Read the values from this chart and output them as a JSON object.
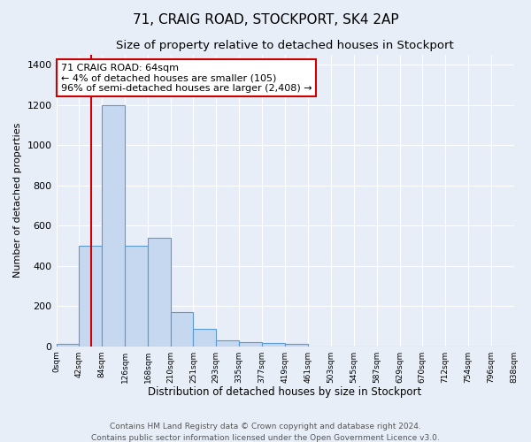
{
  "title": "71, CRAIG ROAD, STOCKPORT, SK4 2AP",
  "subtitle": "Size of property relative to detached houses in Stockport",
  "xlabel": "Distribution of detached houses by size in Stockport",
  "ylabel": "Number of detached properties",
  "bin_edges": [
    0,
    42,
    84,
    126,
    168,
    210,
    251,
    293,
    335,
    377,
    419,
    461,
    503,
    545,
    587,
    629,
    670,
    712,
    754,
    796,
    838
  ],
  "bar_heights": [
    10,
    500,
    1200,
    500,
    540,
    170,
    85,
    30,
    20,
    15,
    10,
    0,
    0,
    0,
    0,
    0,
    0,
    0,
    0,
    0
  ],
  "bar_color": "#c5d8f0",
  "bar_edge_color": "#5b9bd5",
  "red_line_x": 64,
  "red_line_color": "#cc0000",
  "annotation_text": "71 CRAIG ROAD: 64sqm\n← 4% of detached houses are smaller (105)\n96% of semi-detached houses are larger (2,408) →",
  "annotation_fontsize": 8,
  "annotation_box_color": "#ffffff",
  "annotation_box_edgecolor": "#cc0000",
  "ylim": [
    0,
    1450
  ],
  "yticks": [
    0,
    200,
    400,
    600,
    800,
    1000,
    1200,
    1400
  ],
  "tick_labels": [
    "0sqm",
    "42sqm",
    "84sqm",
    "126sqm",
    "168sqm",
    "210sqm",
    "251sqm",
    "293sqm",
    "335sqm",
    "377sqm",
    "419sqm",
    "461sqm",
    "503sqm",
    "545sqm",
    "587sqm",
    "629sqm",
    "670sqm",
    "712sqm",
    "754sqm",
    "796sqm",
    "838sqm"
  ],
  "footer_text": "Contains HM Land Registry data © Crown copyright and database right 2024.\nContains public sector information licensed under the Open Government Licence v3.0.",
  "background_color": "#e8eef8",
  "grid_color": "#ffffff",
  "title_fontsize": 11,
  "subtitle_fontsize": 9.5,
  "xlabel_fontsize": 8.5,
  "ylabel_fontsize": 8,
  "footer_fontsize": 6.5,
  "ytick_fontsize": 8,
  "xtick_fontsize": 6.5
}
